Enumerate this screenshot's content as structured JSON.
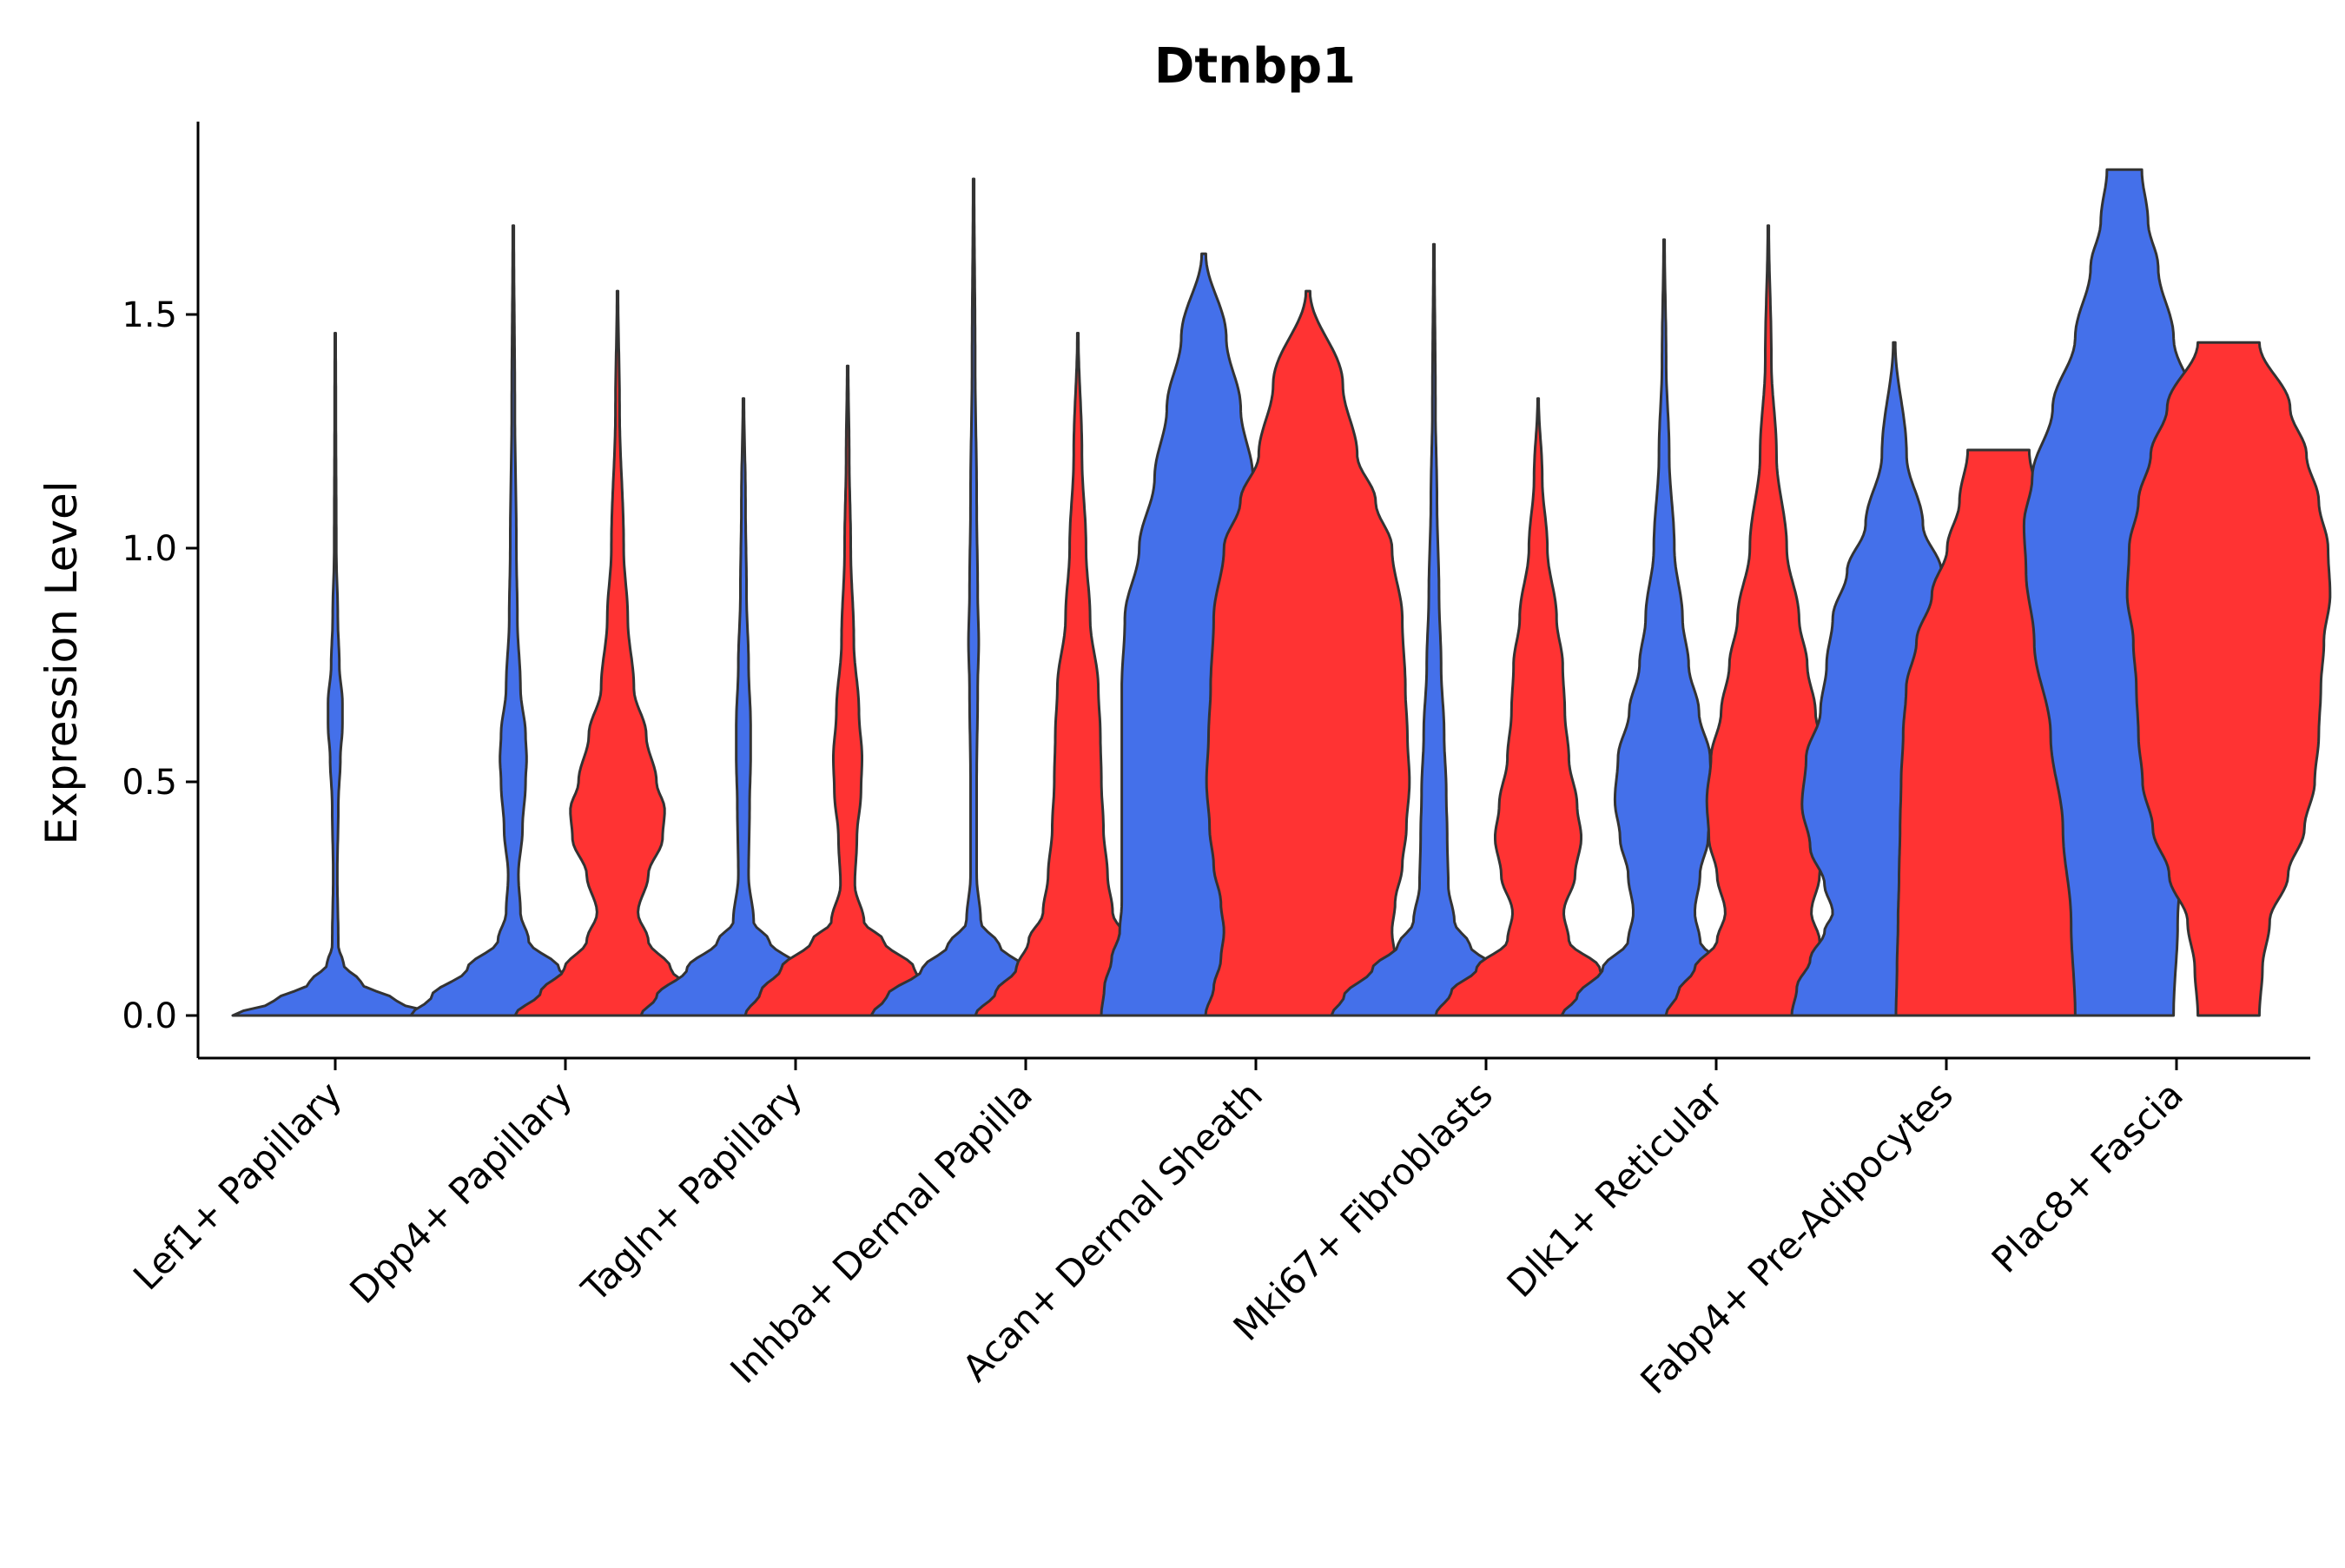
{
  "chart_data": {
    "type": "violin",
    "title": "Dtnbp1",
    "xlabel": "",
    "ylabel": "Expression Level",
    "ylim": [
      -0.09,
      1.92
    ],
    "yticks": [
      0.0,
      0.5,
      1.0,
      1.5
    ],
    "ytick_labels": [
      "0.0",
      "0.5",
      "1.0",
      "1.5"
    ],
    "grid": false,
    "legend": "none",
    "colors": {
      "group_a": "#4470EA",
      "group_b": "#FF3333",
      "outline": "#333333"
    },
    "categories": [
      "Lef1+ Papillary",
      "Dpp4+ Papillary",
      "Tagln+ Papillary",
      "Inhba+ Dermal Papilla",
      "Acan+ Dermal Sheath",
      "Mki67+ Fibroblasts",
      "Dlk1+ Reticular",
      "Fabp4+ Pre-Adipocytes",
      "Plac8+ Fascia"
    ],
    "violins": [
      {
        "category": "Lef1+ Papillary",
        "group": "a",
        "min": 0.0,
        "max": 1.46,
        "profile": [
          [
            0.0,
            1.0
          ],
          [
            0.03,
            0.6
          ],
          [
            0.07,
            0.25
          ],
          [
            0.11,
            0.08
          ],
          [
            0.15,
            0.03
          ],
          [
            0.3,
            0.02
          ],
          [
            0.45,
            0.03
          ],
          [
            0.55,
            0.05
          ],
          [
            0.62,
            0.07
          ],
          [
            0.67,
            0.07
          ],
          [
            0.75,
            0.04
          ],
          [
            0.85,
            0.025
          ],
          [
            1.0,
            0.01
          ],
          [
            1.3,
            0.006
          ],
          [
            1.46,
            0.004
          ]
        ]
      },
      {
        "category": "Dpp4+ Papillary",
        "group": "a",
        "min": 0.0,
        "max": 1.69,
        "profile": [
          [
            0.0,
            1.0
          ],
          [
            0.04,
            0.8
          ],
          [
            0.1,
            0.45
          ],
          [
            0.16,
            0.15
          ],
          [
            0.22,
            0.07
          ],
          [
            0.3,
            0.05
          ],
          [
            0.4,
            0.09
          ],
          [
            0.5,
            0.12
          ],
          [
            0.55,
            0.13
          ],
          [
            0.6,
            0.12
          ],
          [
            0.7,
            0.07
          ],
          [
            0.85,
            0.04
          ],
          [
            1.0,
            0.03
          ],
          [
            1.3,
            0.015
          ],
          [
            1.69,
            0.005
          ]
        ]
      },
      {
        "category": "Dpp4+ Papillary",
        "group": "b",
        "min": 0.0,
        "max": 1.55,
        "profile": [
          [
            0.0,
            1.0
          ],
          [
            0.05,
            0.75
          ],
          [
            0.1,
            0.52
          ],
          [
            0.16,
            0.3
          ],
          [
            0.22,
            0.2
          ],
          [
            0.3,
            0.3
          ],
          [
            0.38,
            0.44
          ],
          [
            0.44,
            0.46
          ],
          [
            0.5,
            0.38
          ],
          [
            0.6,
            0.28
          ],
          [
            0.7,
            0.16
          ],
          [
            0.85,
            0.1
          ],
          [
            1.0,
            0.06
          ],
          [
            1.3,
            0.02
          ],
          [
            1.55,
            0.005
          ]
        ]
      },
      {
        "category": "Tagln+ Papillary",
        "group": "a",
        "min": 0.0,
        "max": 1.32,
        "profile": [
          [
            0.0,
            1.0
          ],
          [
            0.04,
            0.85
          ],
          [
            0.1,
            0.55
          ],
          [
            0.16,
            0.25
          ],
          [
            0.2,
            0.1
          ],
          [
            0.3,
            0.05
          ],
          [
            0.45,
            0.06
          ],
          [
            0.55,
            0.07
          ],
          [
            0.62,
            0.07
          ],
          [
            0.75,
            0.05
          ],
          [
            0.9,
            0.03
          ],
          [
            1.1,
            0.02
          ],
          [
            1.32,
            0.005
          ]
        ]
      },
      {
        "category": "Tagln+ Papillary",
        "group": "b",
        "min": 0.0,
        "max": 1.39,
        "profile": [
          [
            0.0,
            1.0
          ],
          [
            0.05,
            0.85
          ],
          [
            0.1,
            0.65
          ],
          [
            0.16,
            0.35
          ],
          [
            0.2,
            0.16
          ],
          [
            0.28,
            0.07
          ],
          [
            0.38,
            0.09
          ],
          [
            0.48,
            0.13
          ],
          [
            0.55,
            0.14
          ],
          [
            0.65,
            0.11
          ],
          [
            0.8,
            0.06
          ],
          [
            1.0,
            0.03
          ],
          [
            1.2,
            0.015
          ],
          [
            1.39,
            0.005
          ]
        ]
      },
      {
        "category": "Inhba+ Dermal Papilla",
        "group": "a",
        "min": 0.0,
        "max": 1.79,
        "profile": [
          [
            0.0,
            1.0
          ],
          [
            0.04,
            0.85
          ],
          [
            0.1,
            0.5
          ],
          [
            0.15,
            0.25
          ],
          [
            0.2,
            0.07
          ],
          [
            0.3,
            0.03
          ],
          [
            0.5,
            0.03
          ],
          [
            0.7,
            0.04
          ],
          [
            0.8,
            0.05
          ],
          [
            0.9,
            0.04
          ],
          [
            1.1,
            0.03
          ],
          [
            1.4,
            0.015
          ],
          [
            1.79,
            0.005
          ]
        ]
      },
      {
        "category": "Inhba+ Dermal Papilla",
        "group": "b",
        "min": 0.0,
        "max": 1.46,
        "profile": [
          [
            0.0,
            1.0
          ],
          [
            0.05,
            0.8
          ],
          [
            0.1,
            0.6
          ],
          [
            0.16,
            0.48
          ],
          [
            0.22,
            0.34
          ],
          [
            0.3,
            0.29
          ],
          [
            0.4,
            0.25
          ],
          [
            0.5,
            0.23
          ],
          [
            0.6,
            0.22
          ],
          [
            0.7,
            0.2
          ],
          [
            0.85,
            0.12
          ],
          [
            1.0,
            0.08
          ],
          [
            1.2,
            0.04
          ],
          [
            1.46,
            0.005
          ]
        ]
      },
      {
        "category": "Acan+ Dermal Sheath",
        "group": "a",
        "min": 0.0,
        "max": 1.63,
        "profile": [
          [
            0.0,
            1.0
          ],
          [
            0.06,
            0.97
          ],
          [
            0.12,
            0.9
          ],
          [
            0.18,
            0.82
          ],
          [
            0.24,
            0.8
          ],
          [
            0.3,
            0.8
          ],
          [
            0.4,
            0.8
          ],
          [
            0.5,
            0.8
          ],
          [
            0.6,
            0.8
          ],
          [
            0.7,
            0.8
          ],
          [
            0.85,
            0.77
          ],
          [
            1.0,
            0.63
          ],
          [
            1.15,
            0.48
          ],
          [
            1.3,
            0.36
          ],
          [
            1.45,
            0.22
          ],
          [
            1.63,
            0.02
          ]
        ]
      },
      {
        "category": "Acan+ Dermal Sheath",
        "group": "b",
        "min": 0.0,
        "max": 1.55,
        "profile": [
          [
            0.0,
            1.0
          ],
          [
            0.06,
            0.92
          ],
          [
            0.12,
            0.85
          ],
          [
            0.18,
            0.82
          ],
          [
            0.24,
            0.85
          ],
          [
            0.32,
            0.92
          ],
          [
            0.4,
            0.96
          ],
          [
            0.5,
            0.99
          ],
          [
            0.6,
            0.97
          ],
          [
            0.7,
            0.95
          ],
          [
            0.85,
            0.92
          ],
          [
            1.0,
            0.82
          ],
          [
            1.1,
            0.66
          ],
          [
            1.2,
            0.48
          ],
          [
            1.35,
            0.34
          ],
          [
            1.55,
            0.02
          ]
        ]
      },
      {
        "category": "Mki67+ Fibroblasts",
        "group": "a",
        "min": 0.0,
        "max": 1.65,
        "profile": [
          [
            0.0,
            1.0
          ],
          [
            0.04,
            0.88
          ],
          [
            0.1,
            0.6
          ],
          [
            0.15,
            0.35
          ],
          [
            0.2,
            0.2
          ],
          [
            0.28,
            0.14
          ],
          [
            0.38,
            0.13
          ],
          [
            0.48,
            0.12
          ],
          [
            0.6,
            0.1
          ],
          [
            0.75,
            0.07
          ],
          [
            0.9,
            0.05
          ],
          [
            1.1,
            0.03
          ],
          [
            1.3,
            0.015
          ],
          [
            1.65,
            0.005
          ]
        ]
      },
      {
        "category": "Mki67+ Fibroblasts",
        "group": "b",
        "min": 0.0,
        "max": 1.32,
        "profile": [
          [
            0.0,
            1.0
          ],
          [
            0.05,
            0.85
          ],
          [
            0.1,
            0.6
          ],
          [
            0.16,
            0.3
          ],
          [
            0.22,
            0.25
          ],
          [
            0.3,
            0.36
          ],
          [
            0.38,
            0.42
          ],
          [
            0.45,
            0.38
          ],
          [
            0.55,
            0.3
          ],
          [
            0.65,
            0.26
          ],
          [
            0.75,
            0.24
          ],
          [
            0.85,
            0.18
          ],
          [
            1.0,
            0.09
          ],
          [
            1.15,
            0.04
          ],
          [
            1.32,
            0.005
          ]
        ]
      },
      {
        "category": "Dlk1+ Reticular",
        "group": "a",
        "min": 0.0,
        "max": 1.66,
        "profile": [
          [
            0.0,
            1.0
          ],
          [
            0.04,
            0.85
          ],
          [
            0.1,
            0.6
          ],
          [
            0.16,
            0.35
          ],
          [
            0.22,
            0.3
          ],
          [
            0.3,
            0.35
          ],
          [
            0.38,
            0.43
          ],
          [
            0.46,
            0.48
          ],
          [
            0.55,
            0.45
          ],
          [
            0.65,
            0.34
          ],
          [
            0.75,
            0.24
          ],
          [
            0.85,
            0.18
          ],
          [
            1.0,
            0.1
          ],
          [
            1.2,
            0.05
          ],
          [
            1.4,
            0.02
          ],
          [
            1.66,
            0.005
          ]
        ]
      },
      {
        "category": "Dlk1+ Reticular",
        "group": "b",
        "min": 0.0,
        "max": 1.69,
        "profile": [
          [
            0.0,
            1.0
          ],
          [
            0.05,
            0.88
          ],
          [
            0.1,
            0.72
          ],
          [
            0.16,
            0.5
          ],
          [
            0.22,
            0.42
          ],
          [
            0.3,
            0.5
          ],
          [
            0.38,
            0.58
          ],
          [
            0.46,
            0.6
          ],
          [
            0.55,
            0.56
          ],
          [
            0.65,
            0.46
          ],
          [
            0.75,
            0.38
          ],
          [
            0.85,
            0.3
          ],
          [
            1.0,
            0.18
          ],
          [
            1.2,
            0.08
          ],
          [
            1.4,
            0.03
          ],
          [
            1.69,
            0.005
          ]
        ]
      },
      {
        "category": "Fabp4+ Pre-Adipocytes",
        "group": "a",
        "min": 0.0,
        "max": 1.44,
        "profile": [
          [
            0.0,
            1.0
          ],
          [
            0.06,
            0.95
          ],
          [
            0.12,
            0.82
          ],
          [
            0.18,
            0.68
          ],
          [
            0.22,
            0.6
          ],
          [
            0.28,
            0.68
          ],
          [
            0.36,
            0.82
          ],
          [
            0.45,
            0.9
          ],
          [
            0.55,
            0.86
          ],
          [
            0.65,
            0.72
          ],
          [
            0.75,
            0.66
          ],
          [
            0.85,
            0.6
          ],
          [
            0.95,
            0.46
          ],
          [
            1.05,
            0.28
          ],
          [
            1.2,
            0.12
          ],
          [
            1.44,
            0.01
          ]
        ]
      },
      {
        "category": "Fabp4+ Pre-Adipocytes",
        "group": "b",
        "min": 0.0,
        "max": 1.21,
        "profile": [
          [
            0.0,
            1.0
          ],
          [
            0.1,
            0.99
          ],
          [
            0.2,
            0.98
          ],
          [
            0.3,
            0.97
          ],
          [
            0.4,
            0.96
          ],
          [
            0.5,
            0.95
          ],
          [
            0.6,
            0.93
          ],
          [
            0.7,
            0.9
          ],
          [
            0.8,
            0.8
          ],
          [
            0.9,
            0.65
          ],
          [
            1.0,
            0.5
          ],
          [
            1.1,
            0.38
          ],
          [
            1.21,
            0.3
          ]
        ]
      },
      {
        "category": "Plac8+ Fascia",
        "group": "a",
        "min": 0.0,
        "max": 1.81,
        "profile": [
          [
            0.0,
            0.48
          ],
          [
            0.2,
            0.52
          ],
          [
            0.4,
            0.6
          ],
          [
            0.6,
            0.72
          ],
          [
            0.8,
            0.88
          ],
          [
            0.95,
            0.96
          ],
          [
            1.05,
            0.98
          ],
          [
            1.15,
            0.9
          ],
          [
            1.3,
            0.7
          ],
          [
            1.45,
            0.48
          ],
          [
            1.6,
            0.33
          ],
          [
            1.7,
            0.23
          ],
          [
            1.81,
            0.17
          ]
        ]
      },
      {
        "category": "Plac8+ Fascia",
        "group": "b",
        "min": 0.0,
        "max": 1.44,
        "profile": [
          [
            0.0,
            0.3
          ],
          [
            0.1,
            0.33
          ],
          [
            0.2,
            0.4
          ],
          [
            0.3,
            0.58
          ],
          [
            0.4,
            0.74
          ],
          [
            0.5,
            0.84
          ],
          [
            0.6,
            0.88
          ],
          [
            0.7,
            0.9
          ],
          [
            0.8,
            0.93
          ],
          [
            0.9,
            0.99
          ],
          [
            1.0,
            0.97
          ],
          [
            1.1,
            0.88
          ],
          [
            1.2,
            0.76
          ],
          [
            1.3,
            0.6
          ],
          [
            1.44,
            0.3
          ]
        ]
      }
    ]
  }
}
